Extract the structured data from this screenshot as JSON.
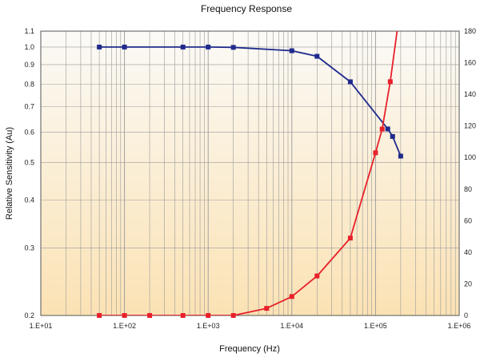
{
  "chart_data": {
    "type": "line",
    "title": "Frequency Response",
    "xlabel": "Frequency (Hz)",
    "ylabel": "Relative Sensitivity (Au)",
    "x_scale": "log",
    "x_range": [
      10,
      1000000
    ],
    "x_tick_labels": [
      "1.E+01",
      "1.E+02",
      "1.E+03",
      "1.E+04",
      "1.E+05",
      "1.E+06"
    ],
    "y_left_scale": "log",
    "y_left_range": [
      0.2,
      1.1
    ],
    "y_left_tick_values": [
      0.2,
      0.3,
      0.4,
      0.5,
      0.6,
      0.7,
      0.8,
      0.9,
      1.0,
      1.1
    ],
    "y_left_tick_labels": [
      "0.2",
      "0.3",
      "0.4",
      "0.5",
      "0.6",
      "0.7",
      "0.8",
      "0.9",
      "1.0",
      "1.1"
    ],
    "y_right_range": [
      0,
      180
    ],
    "y_right_tick_values": [
      0,
      20,
      40,
      60,
      80,
      100,
      120,
      140,
      160,
      180
    ],
    "y_right_tick_labels": [
      "0",
      "20",
      "40",
      "60",
      "80",
      "100",
      "120",
      "140",
      "160",
      "180"
    ],
    "grid": true,
    "series": [
      {
        "axis": "left",
        "color": "#1f2a8c",
        "marker": "square",
        "x": [
          50,
          100,
          500,
          1000,
          2000,
          10000,
          20000,
          50000,
          140000,
          160000,
          200000
        ],
        "y": [
          1.0,
          1.0,
          1.0,
          1.0,
          0.998,
          0.978,
          0.946,
          0.812,
          0.612,
          0.585,
          0.52
        ]
      },
      {
        "axis": "right",
        "color": "#e8202a",
        "marker": "square",
        "x": [
          50,
          100,
          200,
          500,
          1000,
          2000,
          5000,
          10000,
          20000,
          50000,
          100000,
          120000,
          150000,
          200000
        ],
        "y": [
          0,
          0,
          0,
          0,
          0,
          0,
          4.5,
          12,
          25,
          49,
          103,
          118,
          148,
          197
        ]
      }
    ],
    "colors": {
      "grid": "#9a9a9a",
      "background_top": "#fbfaf7",
      "background_bottom": "#fbe2b4",
      "frame": "#555555"
    }
  }
}
